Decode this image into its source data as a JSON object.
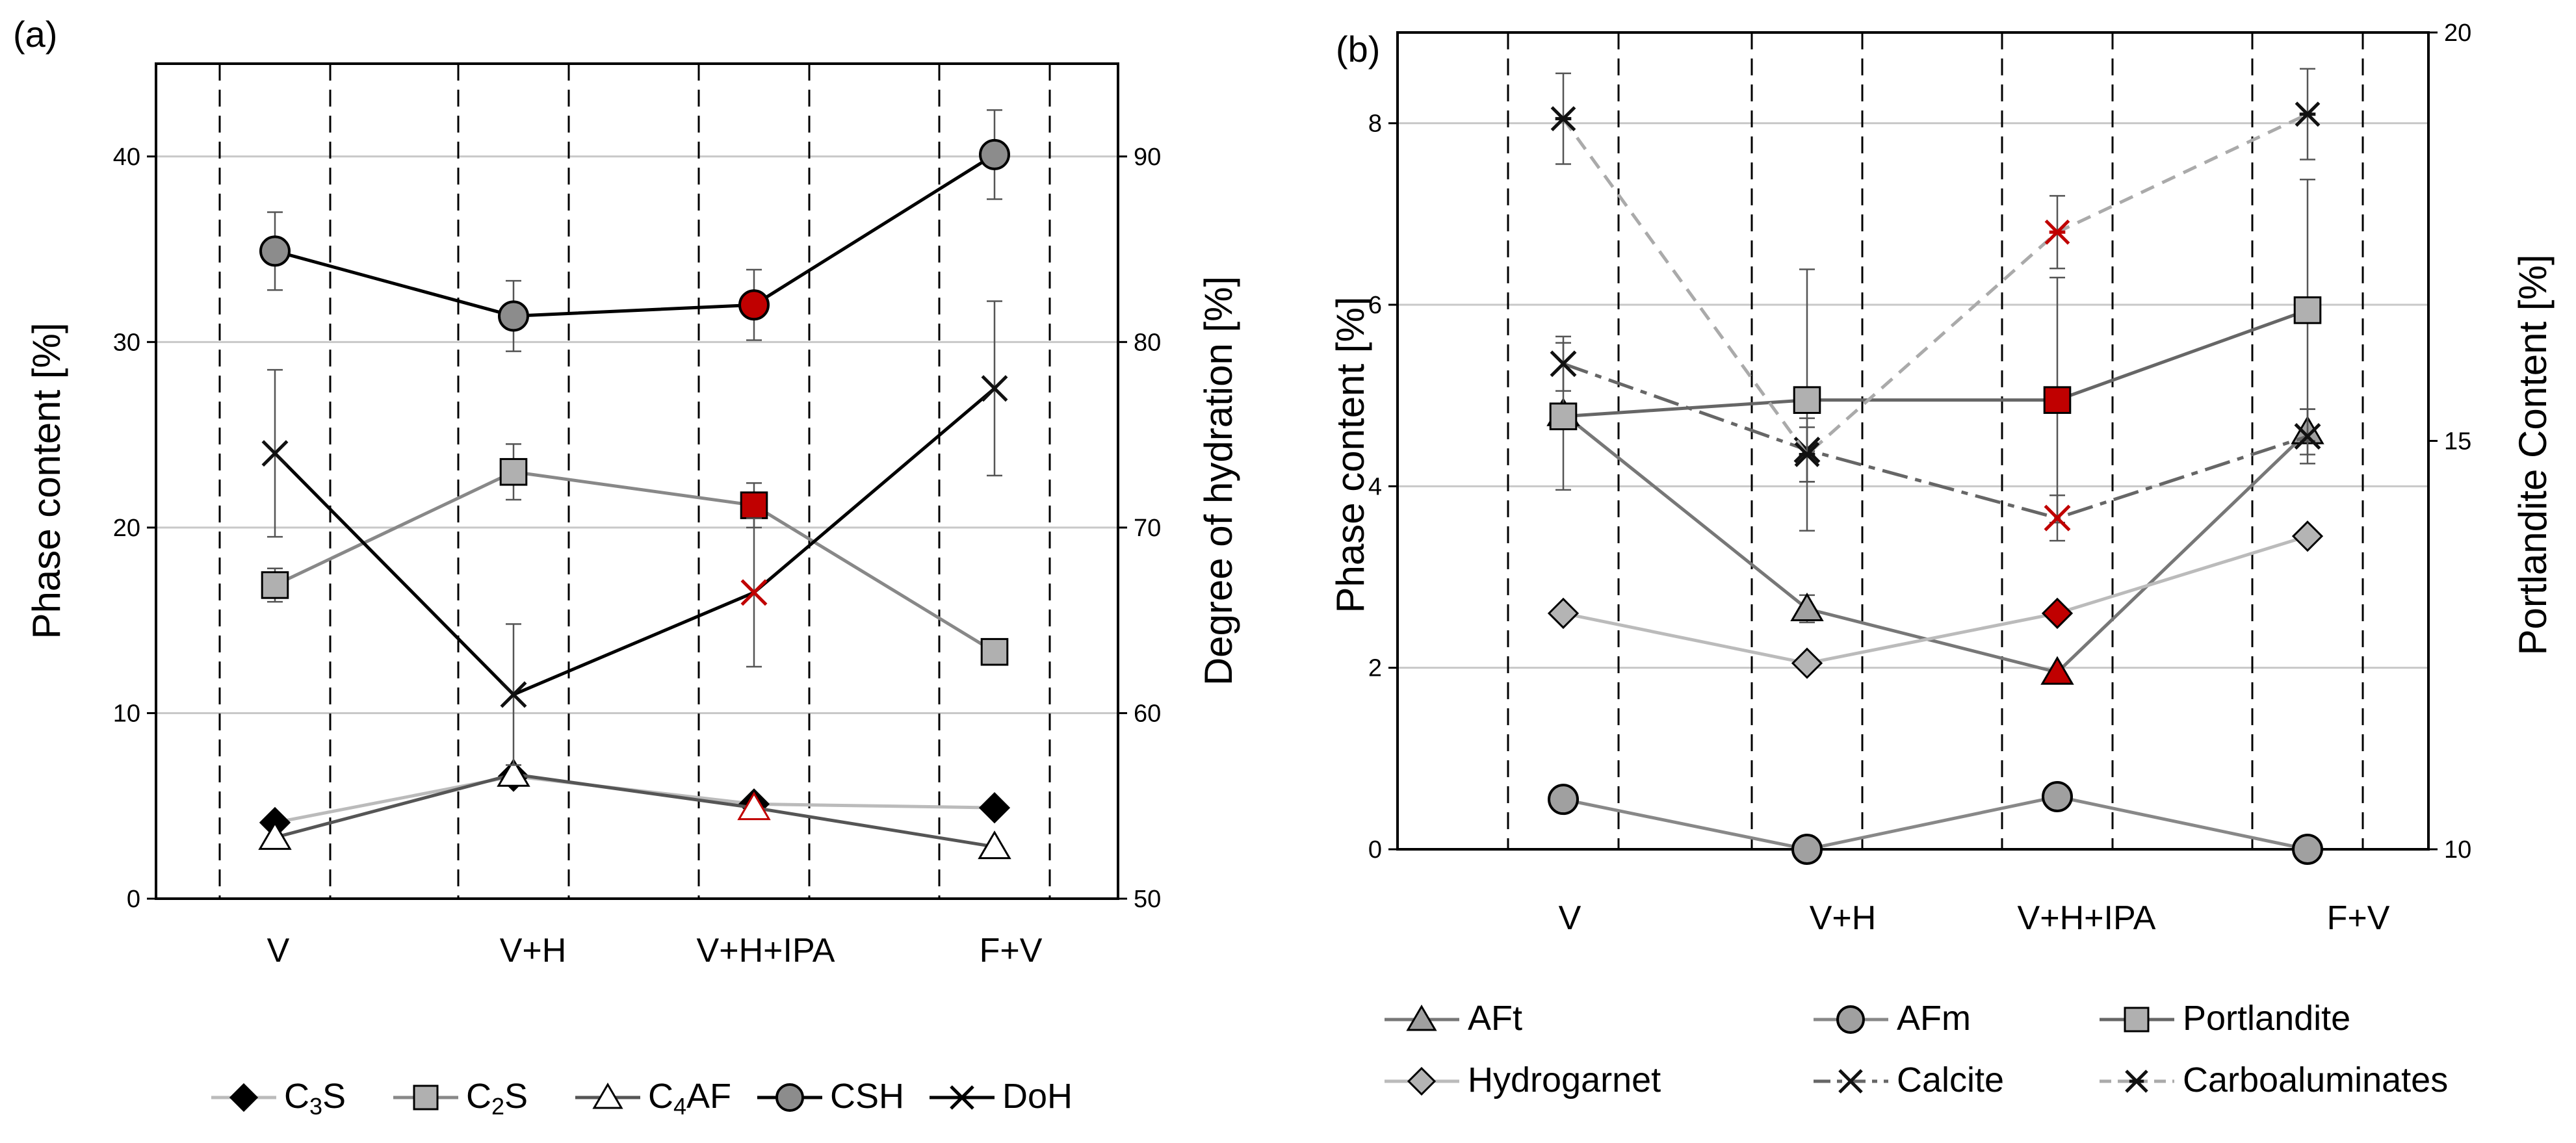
{
  "chart_data": [
    {
      "type": "line",
      "panel_label": "(a)",
      "categories": [
        "V",
        "V+H",
        "V+H+IPA",
        "F+V"
      ],
      "ylabel": "Phase content [%]",
      "y2label": "Degree of hydration [%]",
      "ylim": [
        0,
        45
      ],
      "yticks": [
        "0",
        "10",
        "20",
        "30",
        "40"
      ],
      "y2lim": [
        50,
        95
      ],
      "y2ticks": [
        "50",
        "60",
        "70",
        "80",
        "90"
      ],
      "series": [
        {
          "name": "C3S",
          "legend_main": "C",
          "legend_sub": "3",
          "legend_tail": "S",
          "marker": "diamond",
          "fill": "#000000",
          "line": "#bbbbbb",
          "axis": "left",
          "values": [
            4.1,
            6.6,
            5.1,
            4.9
          ],
          "highlight": [
            false,
            false,
            false,
            false
          ]
        },
        {
          "name": "C2S",
          "legend_main": "C",
          "legend_sub": "2",
          "legend_tail": "S",
          "marker": "square",
          "fill": "#b0b0b0",
          "line": "#888888",
          "axis": "left",
          "values": [
            16.9,
            23.0,
            21.2,
            13.3
          ],
          "err": [
            0.9,
            1.5,
            1.2,
            null
          ],
          "highlight": [
            false,
            false,
            true,
            false
          ]
        },
        {
          "name": "C4AF",
          "legend_main": "C",
          "legend_sub": "4",
          "legend_tail": "AF",
          "marker": "triangle",
          "fill": "#ffffff",
          "line": "#555555",
          "axis": "left",
          "values": [
            3.3,
            6.7,
            4.9,
            2.8
          ],
          "highlight": [
            false,
            false,
            true,
            false
          ]
        },
        {
          "name": "CSH",
          "legend_main": "CSH",
          "legend_sub": "",
          "legend_tail": "",
          "marker": "circle",
          "fill": "#8c8c8c",
          "line": "#000000",
          "axis": "left",
          "values": [
            34.9,
            31.4,
            32.0,
            40.1
          ],
          "err": [
            2.1,
            1.9,
            1.9,
            2.4
          ],
          "highlight": [
            false,
            false,
            true,
            false
          ]
        },
        {
          "name": "DoH",
          "legend_main": "DoH",
          "legend_sub": "",
          "legend_tail": "",
          "marker": "x",
          "fill": "#000000",
          "line": "#000000",
          "axis": "right",
          "values": [
            74.0,
            61.0,
            66.5,
            77.5
          ],
          "err": [
            4.5,
            3.8,
            4.0,
            4.7
          ],
          "highlight": [
            false,
            false,
            true,
            false
          ]
        }
      ]
    },
    {
      "type": "line",
      "panel_label": "(b)",
      "categories": [
        "V",
        "V+H",
        "V+H+IPA",
        "F+V"
      ],
      "ylabel": "Phase content [%]",
      "y2label": "Portlandite Content [%]",
      "ylim": [
        0,
        9
      ],
      "yticks": [
        "0",
        "2",
        "4",
        "6",
        "8"
      ],
      "y2lim": [
        10,
        20
      ],
      "y2ticks": [
        "10",
        "15",
        "20"
      ],
      "series": [
        {
          "name": "AFt",
          "marker": "triangle",
          "fill": "#a0a0a0",
          "line": "#777777",
          "dash": "",
          "axis": "left",
          "values": [
            4.8,
            2.65,
            1.95,
            4.6
          ],
          "err": [
            null,
            0.15,
            null,
            0.25
          ],
          "highlight": [
            false,
            false,
            true,
            false
          ]
        },
        {
          "name": "AFm",
          "marker": "circle",
          "fill": "#a0a0a0",
          "line": "#888888",
          "dash": "",
          "axis": "left",
          "values": [
            0.55,
            0.0,
            0.58,
            0.0
          ],
          "highlight": [
            false,
            false,
            false,
            false
          ]
        },
        {
          "name": "Portlandite",
          "marker": "square",
          "fill": "#b0b0b0",
          "line": "#666666",
          "dash": "",
          "axis": "right",
          "values": [
            15.3,
            15.5,
            15.5,
            16.6
          ],
          "err": [
            0.9,
            1.6,
            1.5,
            1.6
          ],
          "highlight": [
            false,
            false,
            true,
            false
          ]
        },
        {
          "name": "Hydrogarnet",
          "marker": "diamond",
          "fill": "#b4b4b4",
          "line": "#bbbbbb",
          "dash": "",
          "axis": "left",
          "values": [
            2.6,
            2.05,
            2.6,
            3.45
          ],
          "highlight": [
            false,
            false,
            true,
            false
          ]
        },
        {
          "name": "Calcite",
          "marker": "x",
          "fill": "#333333",
          "line": "#666666",
          "dash": "40 12 10 12",
          "axis": "left",
          "values": [
            5.35,
            4.4,
            3.65,
            4.55
          ],
          "err": [
            0.3,
            0.35,
            0.25,
            0.3
          ],
          "highlight": [
            false,
            false,
            true,
            false
          ]
        },
        {
          "name": "Carboaluminates",
          "marker": "asterisk",
          "fill": "#333333",
          "line": "#aaaaaa",
          "dash": "22 14",
          "axis": "left",
          "values": [
            8.05,
            4.35,
            6.8,
            8.1
          ],
          "err": [
            0.5,
            0.3,
            0.4,
            0.5
          ],
          "highlight": [
            false,
            false,
            true,
            false
          ]
        }
      ]
    }
  ]
}
